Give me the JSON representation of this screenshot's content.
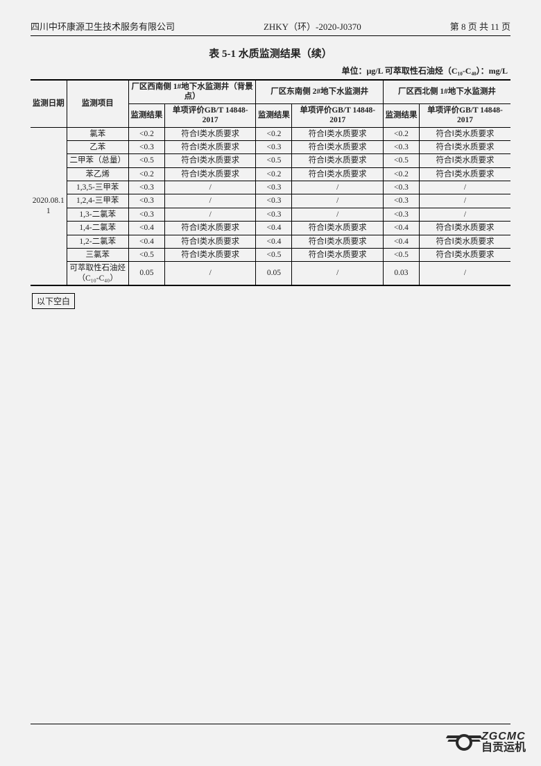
{
  "header": {
    "company": "四川中环康源卫生技术服务有限公司",
    "doc_no": "ZHKY（环）-2020-J0370",
    "page": "第 8 页 共 11 页"
  },
  "title": "表 5-1  水质监测结果（续）",
  "unit": "单位：μg/L  可萃取性石油烃（C₁₀-C₄₀）：mg/L",
  "columns": {
    "date": "监测日期",
    "item": "监测项目",
    "well1": "厂区西南侧 1#地下水监测井（背景点）",
    "well2": "厂区东南侧 2#地下水监测井",
    "well3": "厂区西北侧 1#地下水监测井",
    "result": "监测结果",
    "eval": "单项评价GB/T 14848-2017"
  },
  "date_value": "2020.08.11",
  "eval_ok": "符合Ⅰ类水质要求",
  "eval_none": "/",
  "rows": [
    {
      "item": "氯苯",
      "r1": "<0.2",
      "e1": "ok",
      "r2": "<0.2",
      "e2": "ok",
      "r3": "<0.2",
      "e3": "ok"
    },
    {
      "item": "乙苯",
      "r1": "<0.3",
      "e1": "ok",
      "r2": "<0.3",
      "e2": "ok",
      "r3": "<0.3",
      "e3": "ok"
    },
    {
      "item": "二甲苯（总量）",
      "r1": "<0.5",
      "e1": "ok",
      "r2": "<0.5",
      "e2": "ok",
      "r3": "<0.5",
      "e3": "ok"
    },
    {
      "item": "苯乙烯",
      "r1": "<0.2",
      "e1": "ok",
      "r2": "<0.2",
      "e2": "ok",
      "r3": "<0.2",
      "e3": "ok"
    },
    {
      "item": "1,3,5-三甲苯",
      "r1": "<0.3",
      "e1": "none",
      "r2": "<0.3",
      "e2": "none",
      "r3": "<0.3",
      "e3": "none"
    },
    {
      "item": "1,2,4-三甲苯",
      "r1": "<0.3",
      "e1": "none",
      "r2": "<0.3",
      "e2": "none",
      "r3": "<0.3",
      "e3": "none"
    },
    {
      "item": "1,3-二氯苯",
      "r1": "<0.3",
      "e1": "none",
      "r2": "<0.3",
      "e2": "none",
      "r3": "<0.3",
      "e3": "none"
    },
    {
      "item": "1,4-二氯苯",
      "r1": "<0.4",
      "e1": "ok",
      "r2": "<0.4",
      "e2": "ok",
      "r3": "<0.4",
      "e3": "ok"
    },
    {
      "item": "1,2-二氯苯",
      "r1": "<0.4",
      "e1": "ok",
      "r2": "<0.4",
      "e2": "ok",
      "r3": "<0.4",
      "e3": "ok"
    },
    {
      "item": "三氯苯",
      "r1": "<0.5",
      "e1": "ok",
      "r2": "<0.5",
      "e2": "ok",
      "r3": "<0.5",
      "e3": "ok"
    },
    {
      "item": "可萃取性石油烃（C₁₀-C₄₀）",
      "r1": "0.05",
      "e1": "none",
      "r2": "0.05",
      "e2": "none",
      "r3": "0.03",
      "e3": "none"
    }
  ],
  "blank_note": "以下空白",
  "logo": {
    "en": "ZGCMC",
    "cn": "自贡运机"
  }
}
